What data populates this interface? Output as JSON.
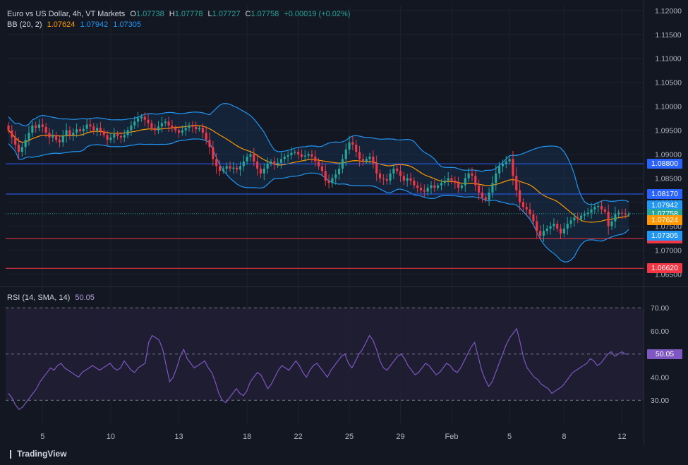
{
  "header": {
    "symbol": "Euro vs US Dollar, 4h, VT Markets",
    "o_label": "O",
    "o": "1.07738",
    "h_label": "H",
    "h": "1.07778",
    "l_label": "L",
    "l": "1.07727",
    "c_label": "C",
    "c": "1.07758",
    "change": "+0.00019 (+0.02%)",
    "bb_label": "BB (20, 2)",
    "bb_basis": "1.07624",
    "bb_upper": "1.07942",
    "bb_lower": "1.07305"
  },
  "rsi_header": {
    "label": "RSI (14, SMA, 14)",
    "value": "50.05"
  },
  "brand": {
    "icon": "tradingview-logo-icon",
    "text": "TradingView"
  },
  "colors": {
    "up": "#26a69a",
    "down": "#f23645",
    "basis": "#ff9800",
    "band": "#2196f3",
    "blue_line": "#2962ff",
    "red_line": "#f23645",
    "rsi": "#7e57c2",
    "text": "#d1d4dc"
  },
  "chart_data": [
    {
      "type": "candlestick",
      "title": "Euro vs US Dollar, 4h, VT Markets",
      "ylim": [
        1.063,
        1.121
      ],
      "y_ticks": [
        "1.12000",
        "1.11500",
        "1.11000",
        "1.10500",
        "1.10000",
        "1.09500",
        "1.09000",
        "1.08500",
        "1.08000",
        "1.07500",
        "1.07000",
        "1.06500"
      ],
      "x_ticks": [
        "5",
        "10",
        "13",
        "18",
        "22",
        "25",
        "29",
        "Feb",
        "5",
        "8",
        "12"
      ],
      "x_tick_index": [
        10,
        30,
        50,
        70,
        85,
        100,
        115,
        130,
        147,
        163,
        180
      ],
      "horizontal_lines": [
        {
          "value": 1.088,
          "label": "1.08800",
          "color": "#2962ff"
        },
        {
          "value": 1.0817,
          "label": "1.08170",
          "color": "#2962ff"
        },
        {
          "value": 1.0724,
          "label": "1.07240",
          "color": "#f23645"
        },
        {
          "value": 1.0662,
          "label": "1.06620",
          "color": "#f23645"
        }
      ],
      "price_labels": [
        {
          "value": 1.0794,
          "label": "1.07942",
          "color": "#2196f3"
        },
        {
          "value": 1.0776,
          "label": "1.07758",
          "color": "#26a69a"
        },
        {
          "value": 1.0762,
          "label": "1.07624",
          "color": "#ff9800"
        },
        {
          "value": 1.073,
          "label": "1.07305",
          "color": "#2196f3"
        }
      ],
      "close": [
        1.095,
        1.0935,
        1.092,
        1.0905,
        1.0915,
        1.093,
        1.0945,
        1.096,
        1.0955,
        1.0962,
        1.0957,
        1.0945,
        1.0935,
        1.094,
        1.093,
        1.0925,
        1.0938,
        1.095,
        1.094,
        1.0945,
        1.0952,
        1.0948,
        1.0953,
        1.0962,
        1.0958,
        1.095,
        1.0955,
        1.0948,
        1.094,
        1.093,
        1.0935,
        1.0942,
        1.0938,
        1.0935,
        1.094,
        1.095,
        1.096,
        1.0968,
        1.0975,
        1.0978,
        1.0972,
        1.0965,
        1.0955,
        1.095,
        1.0958,
        1.0965,
        1.0968,
        1.096,
        1.0955,
        1.095,
        1.0945,
        1.095,
        1.0955,
        1.096,
        1.0957,
        1.0952,
        1.0955,
        1.0945,
        1.093,
        1.0915,
        1.089,
        1.0875,
        1.0865,
        1.087,
        1.0875,
        1.087,
        1.0872,
        1.0868,
        1.0875,
        1.0885,
        1.0895,
        1.09,
        1.0885,
        1.087,
        1.086,
        1.087,
        1.088,
        1.0885,
        1.0878,
        1.0882,
        1.089,
        1.0895,
        1.0898,
        1.0903,
        1.0905,
        1.09,
        1.0895,
        1.0897,
        1.09,
        1.0895,
        1.0885,
        1.0875,
        1.0865,
        1.0845,
        1.084,
        1.085,
        1.0858,
        1.087,
        1.089,
        1.091,
        1.0925,
        1.092,
        1.0905,
        1.089,
        1.0885,
        1.089,
        1.0895,
        1.088,
        1.086,
        1.085,
        1.0848,
        1.0845,
        1.086,
        1.087,
        1.0865,
        1.0855,
        1.0845,
        1.085,
        1.0845,
        1.0835,
        1.083,
        1.0825,
        1.0822,
        1.083,
        1.0835,
        1.083,
        1.0835,
        1.084,
        1.0845,
        1.085,
        1.0845,
        1.084,
        1.083,
        1.0835,
        1.085,
        1.086,
        1.0855,
        1.0835,
        1.082,
        1.081,
        1.0805,
        1.082,
        1.084,
        1.086,
        1.0875,
        1.088,
        1.0885,
        1.089,
        1.0855,
        1.0825,
        1.08,
        1.079,
        1.0785,
        1.0775,
        1.076,
        1.074,
        1.073,
        1.074,
        1.0745,
        1.075,
        1.0755,
        1.0745,
        1.0735,
        1.0745,
        1.0755,
        1.0762,
        1.0768,
        1.0765,
        1.0772,
        1.0775,
        1.0778,
        1.0785,
        1.079,
        1.0792,
        1.0785,
        1.078,
        1.075,
        1.076,
        1.0775,
        1.0778,
        1.0776,
        1.0774,
        1.0776
      ]
    },
    {
      "type": "line",
      "title": "RSI (14, SMA, 14)",
      "ylim": [
        20,
        78
      ],
      "y_ticks": [
        "70.00",
        "60.00",
        "50.00",
        "40.00",
        "30.00"
      ],
      "guides": [
        70,
        50,
        30
      ],
      "last_value": "50.05",
      "values": [
        33,
        31,
        28,
        26,
        27,
        29,
        31,
        33,
        35,
        38,
        40,
        42,
        44,
        43,
        45,
        46,
        44,
        43,
        42,
        41,
        40,
        42,
        43,
        44,
        45,
        44,
        43,
        44,
        45,
        46,
        44,
        43,
        44,
        47,
        45,
        43,
        42,
        44,
        45,
        46,
        55,
        58,
        57,
        56,
        52,
        45,
        38,
        40,
        44,
        49,
        52,
        48,
        46,
        44,
        45,
        46,
        47,
        44,
        42,
        38,
        33,
        30,
        29,
        31,
        33,
        35,
        33,
        32,
        34,
        38,
        40,
        42,
        41,
        38,
        35,
        37,
        40,
        43,
        45,
        44,
        43,
        45,
        47,
        45,
        42,
        40,
        43,
        45,
        46,
        44,
        42,
        40,
        43,
        45,
        47,
        49,
        50,
        46,
        44,
        47,
        50,
        52,
        55,
        58,
        56,
        52,
        47,
        44,
        43,
        45,
        47,
        49,
        50,
        48,
        45,
        43,
        41,
        42,
        44,
        46,
        45,
        43,
        41,
        42,
        44,
        46,
        45,
        43,
        42,
        44,
        47,
        50,
        53,
        55,
        49,
        43,
        39,
        36,
        38,
        42,
        46,
        50,
        54,
        57,
        59,
        61,
        55,
        48,
        44,
        42,
        40,
        39,
        37,
        36,
        35,
        33,
        34,
        35,
        36,
        38,
        40,
        42,
        43,
        44,
        45,
        46,
        48,
        47,
        45,
        46,
        48,
        50,
        51,
        49,
        50,
        51,
        50,
        50
      ]
    }
  ]
}
